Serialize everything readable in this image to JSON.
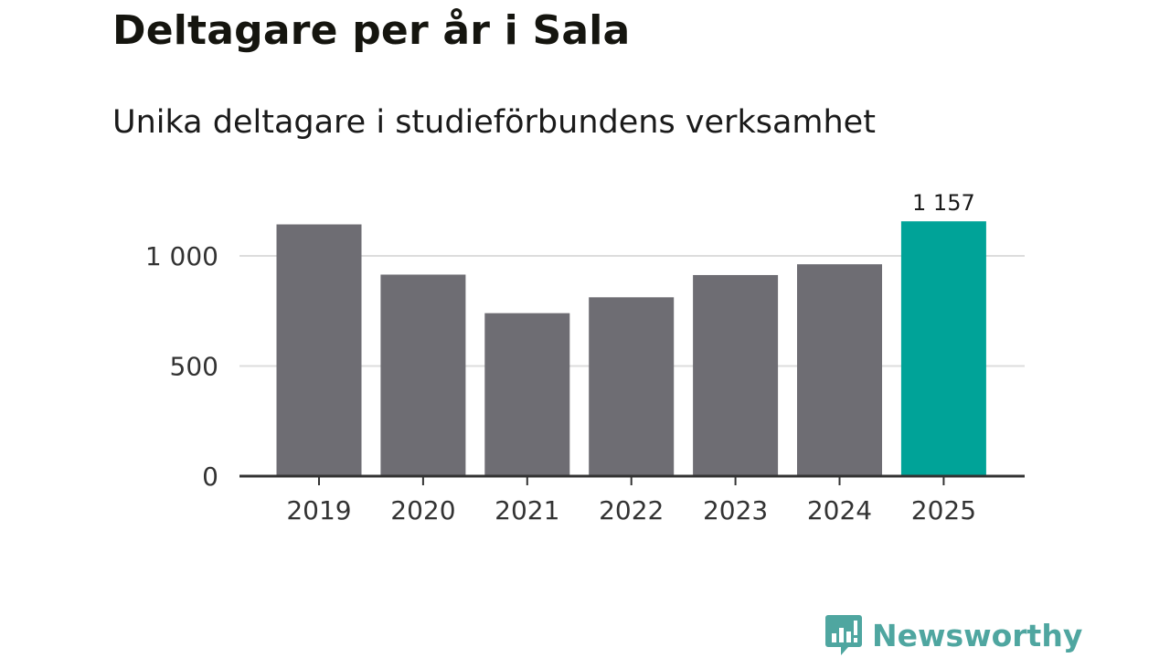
{
  "title": "Deltagare per år i Sala",
  "subtitle": "Unika deltagare i studieförbundens verksamhet",
  "brand": {
    "name": "Newsworthy",
    "icon": "bar-chart-bubble-icon",
    "color": "#4fa6a0"
  },
  "colors": {
    "bar": "#6e6d73",
    "highlight": "#00a398",
    "grid": "#dcdcdc",
    "axis": "#333333"
  },
  "chart_data": {
    "type": "bar",
    "categories": [
      "2019",
      "2020",
      "2021",
      "2022",
      "2023",
      "2024",
      "2025"
    ],
    "values": [
      1143,
      915,
      740,
      812,
      913,
      962,
      1157
    ],
    "highlight_index": 6,
    "data_labels": [
      {
        "index": 6,
        "text": "1 157"
      }
    ],
    "ylim": [
      0,
      1200
    ],
    "yticks": [
      {
        "value": 0,
        "label": "0"
      },
      {
        "value": 500,
        "label": "500"
      },
      {
        "value": 1000,
        "label": "1 000"
      }
    ],
    "grid": true,
    "legend": "none",
    "xlabel": "",
    "ylabel": ""
  }
}
